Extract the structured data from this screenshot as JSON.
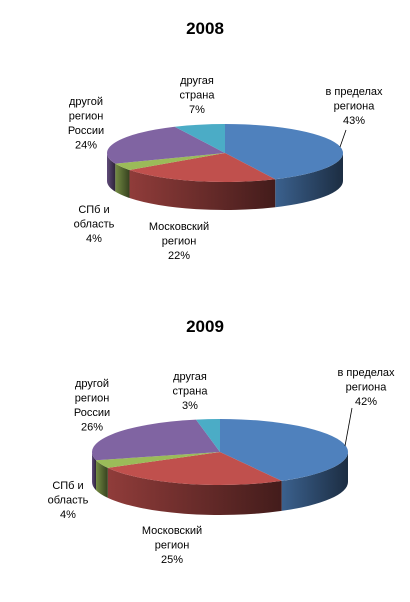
{
  "chart_data": [
    {
      "type": "pie",
      "title": "2008",
      "categories": [
        "в пределах региона",
        "Московский регион",
        "СПб и область",
        "другой регион России",
        "другая страна"
      ],
      "values": [
        43,
        22,
        4,
        24,
        7
      ],
      "value_labels": [
        "43%",
        "22%",
        "4%",
        "24%",
        "7%"
      ],
      "label_lines": [
        [
          "в пределах",
          "региона"
        ],
        [
          "Московский",
          "регион"
        ],
        [
          "СПб и",
          "область"
        ],
        [
          "другой",
          "регион",
          "России"
        ],
        [
          "другая",
          "страна"
        ]
      ],
      "colors": [
        "#4F81BD",
        "#C0504D",
        "#9BBB59",
        "#8064A2",
        "#4BACC6"
      ],
      "three_d": true,
      "legend": "none"
    },
    {
      "type": "pie",
      "title": "2009",
      "categories": [
        "в пределах региона",
        "Московский регион",
        "СПб и область",
        "другой регион России",
        "другая страна"
      ],
      "values": [
        42,
        25,
        4,
        26,
        3
      ],
      "value_labels": [
        "42%",
        "25%",
        "4%",
        "26%",
        "3%"
      ],
      "label_lines": [
        [
          "в пределах",
          "региона"
        ],
        [
          "Московский",
          "регион"
        ],
        [
          "СПб и",
          "область"
        ],
        [
          "другой",
          "регион",
          "России"
        ],
        [
          "другая",
          "страна"
        ]
      ],
      "colors": [
        "#4F81BD",
        "#C0504D",
        "#9BBB59",
        "#8064A2",
        "#4BACC6"
      ],
      "three_d": true,
      "legend": "none"
    }
  ]
}
